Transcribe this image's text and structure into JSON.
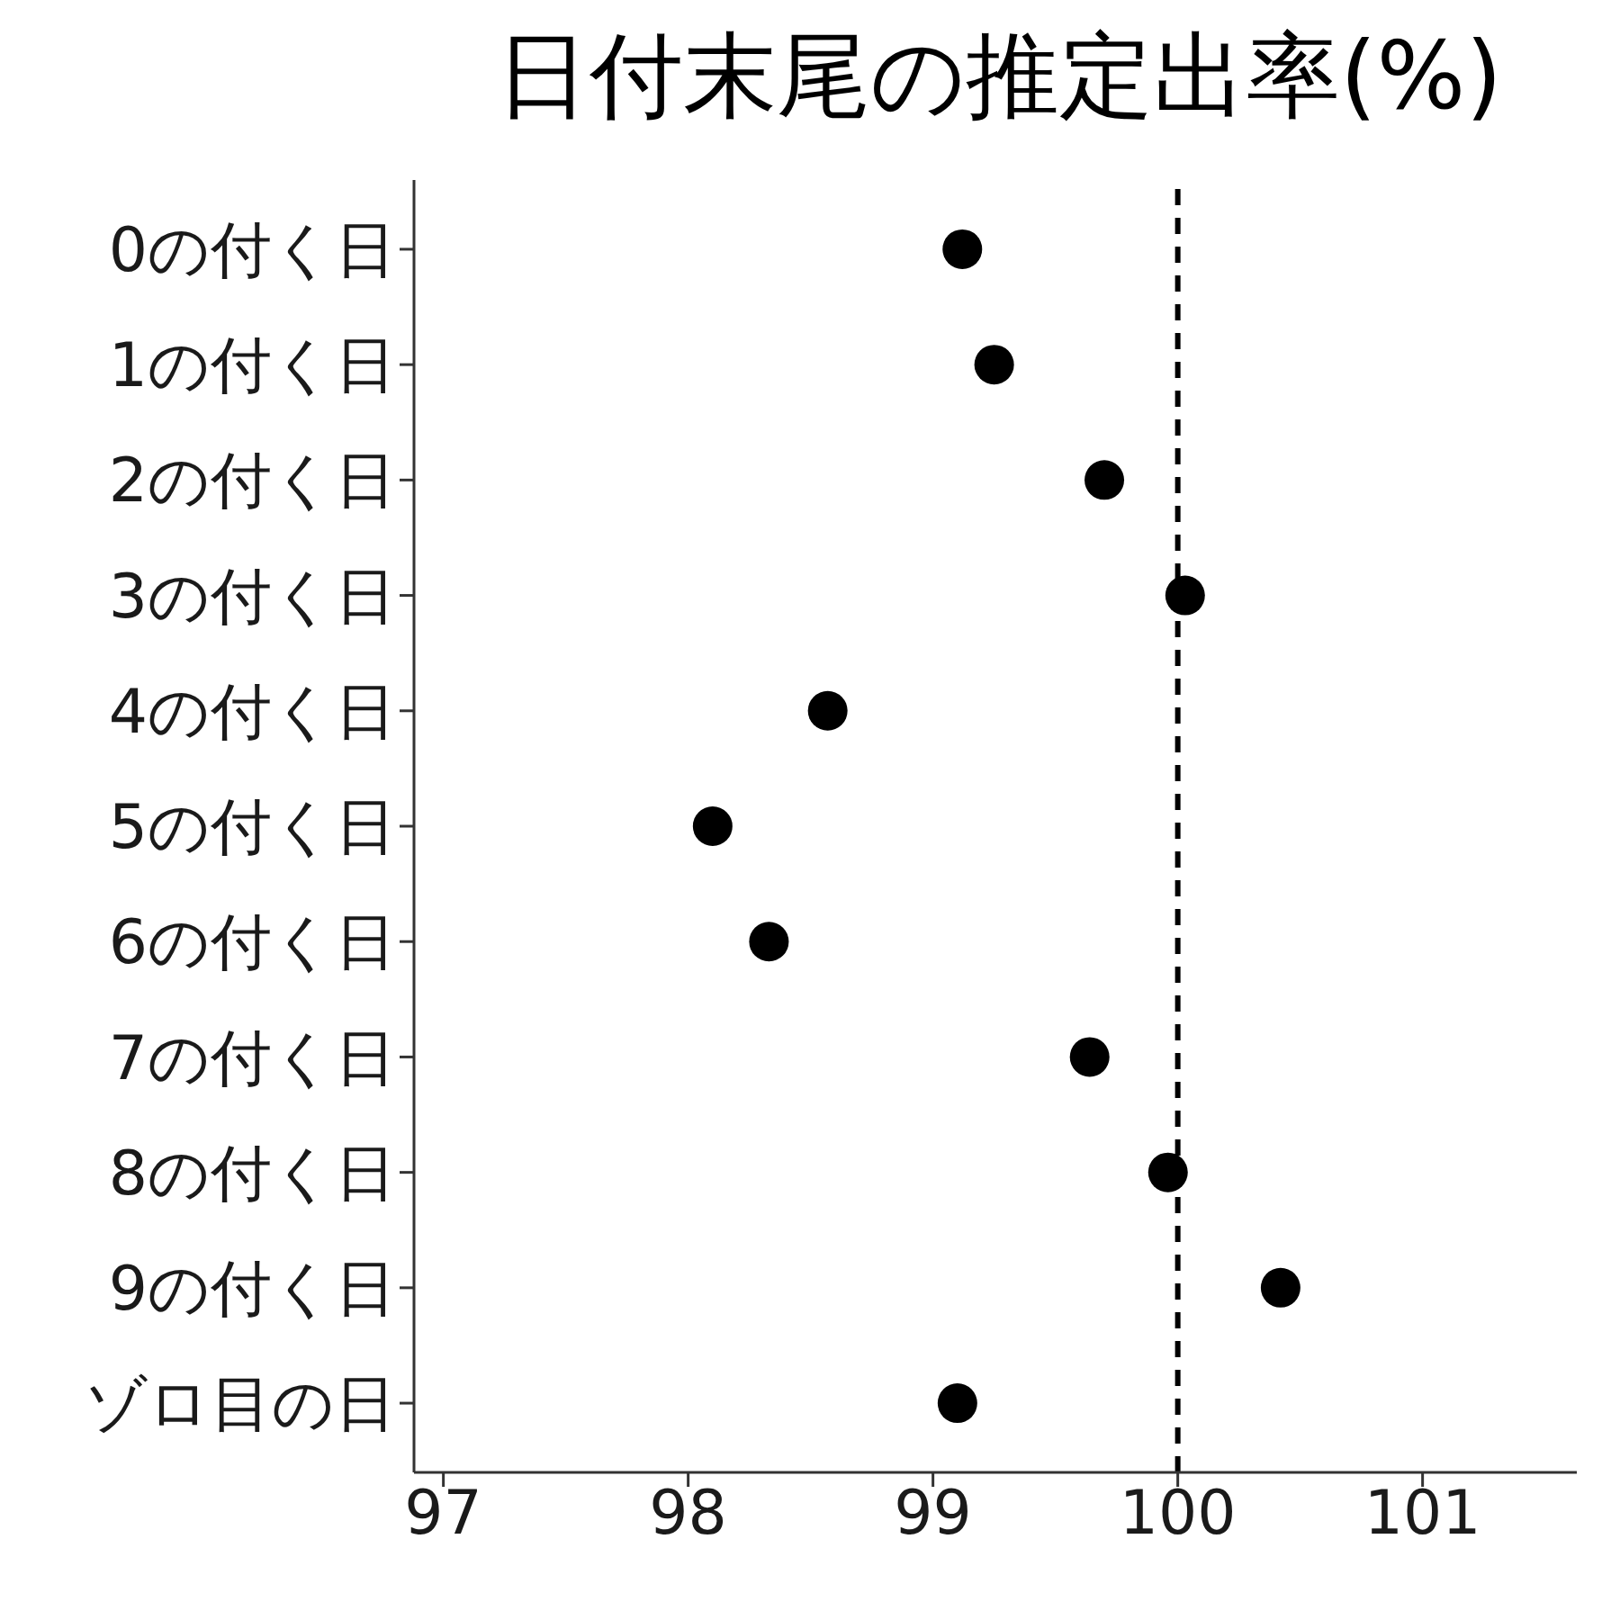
{
  "chart_data": {
    "type": "scatter",
    "title": "日付末尾の推定出率(%)",
    "orientation": "horizontal",
    "categories": [
      "0の付く日",
      "1の付く日",
      "2の付く日",
      "3の付く日",
      "4の付く日",
      "5の付く日",
      "6の付く日",
      "7の付く日",
      "8の付く日",
      "9の付く日",
      "ゾロ目の日"
    ],
    "values": [
      99.12,
      99.25,
      99.7,
      100.03,
      98.57,
      98.1,
      98.33,
      99.64,
      99.96,
      100.42,
      99.1
    ],
    "color": "#000000",
    "marker": "circle",
    "xlim": [
      96.88,
      101.63
    ],
    "xticks": [
      97,
      98,
      99,
      100,
      101
    ],
    "ref_lines": [
      {
        "axis": "x",
        "value": 100,
        "line_style": "dashed",
        "color": "#000000"
      }
    ]
  }
}
